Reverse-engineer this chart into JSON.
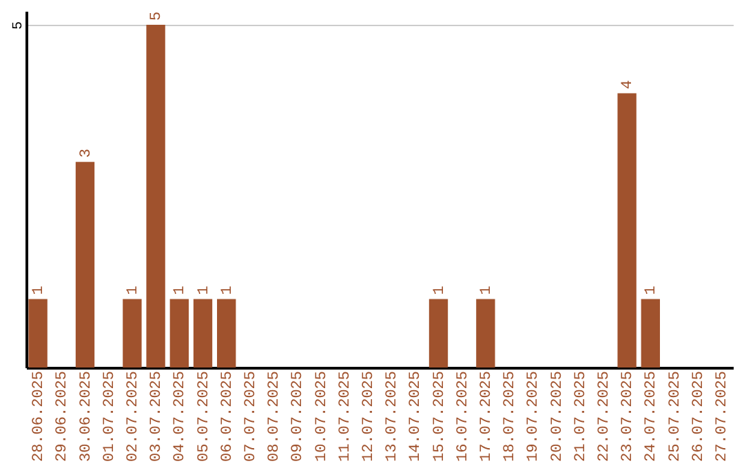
{
  "chart_data": {
    "type": "bar",
    "categories": [
      "28.06.2025",
      "29.06.2025",
      "30.06.2025",
      "01.07.2025",
      "02.07.2025",
      "03.07.2025",
      "04.07.2025",
      "05.07.2025",
      "06.07.2025",
      "07.07.2025",
      "08.07.2025",
      "09.07.2025",
      "10.07.2025",
      "11.07.2025",
      "12.07.2025",
      "13.07.2025",
      "14.07.2025",
      "15.07.2025",
      "16.07.2025",
      "17.07.2025",
      "18.07.2025",
      "19.07.2025",
      "20.07.2025",
      "21.07.2025",
      "22.07.2025",
      "23.07.2025",
      "24.07.2025",
      "25.07.2025",
      "26.07.2025",
      "27.07.2025"
    ],
    "values": [
      1,
      0,
      3,
      0,
      1,
      5,
      1,
      1,
      1,
      0,
      0,
      0,
      0,
      0,
      0,
      0,
      0,
      1,
      0,
      1,
      0,
      0,
      0,
      0,
      0,
      4,
      1,
      0,
      0,
      0
    ],
    "value_labels": [
      "1",
      null,
      "3",
      null,
      "1",
      "5",
      "1",
      "1",
      "1",
      null,
      null,
      null,
      null,
      null,
      null,
      null,
      null,
      "1",
      null,
      "1",
      null,
      null,
      null,
      null,
      null,
      "4",
      "1",
      null,
      null,
      null
    ],
    "color": "#a0522d",
    "ylim": [
      0,
      5.2
    ],
    "yticks": [
      5
    ],
    "grid": "y"
  }
}
